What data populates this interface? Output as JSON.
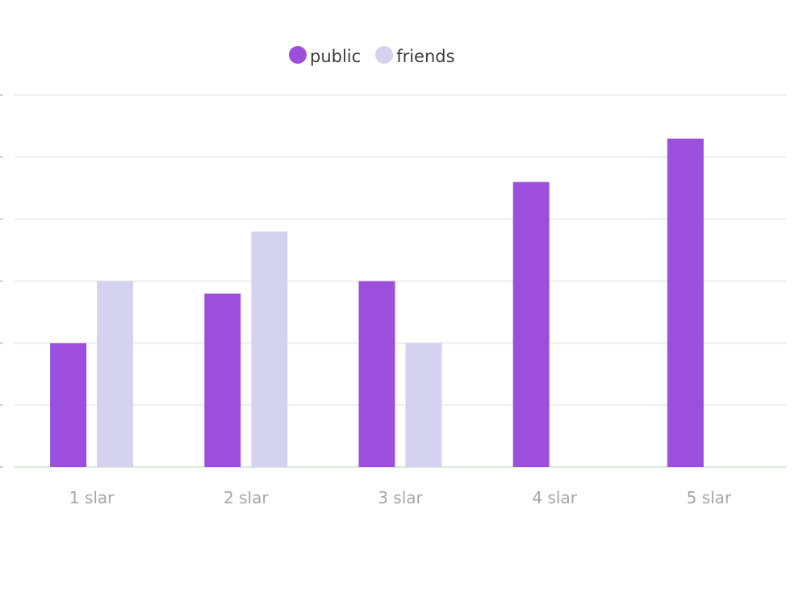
{
  "legend": {
    "items": [
      {
        "label": "public",
        "color": "#9b4fdc"
      },
      {
        "label": "friends",
        "color": "#d4d2ef"
      }
    ]
  },
  "chart_data": {
    "type": "bar",
    "categories": [
      "1 slar",
      "2 slar",
      "3 slar",
      "4 slar",
      "5 slar"
    ],
    "series": [
      {
        "name": "public",
        "color": "#9b4fdc",
        "values": [
          2,
          2.8,
          3,
          4.6,
          5.3
        ]
      },
      {
        "name": "friends",
        "color": "#d4d2ef",
        "values": [
          3,
          3.8,
          2,
          0,
          0
        ]
      }
    ],
    "ylim": [
      0,
      6
    ],
    "yticks": [
      0,
      1,
      2,
      3,
      4,
      5,
      6
    ],
    "grid": true,
    "legend_position": "top-center",
    "gridline_color": "#eeeeee",
    "baseline_color": "#d8ecd8"
  }
}
